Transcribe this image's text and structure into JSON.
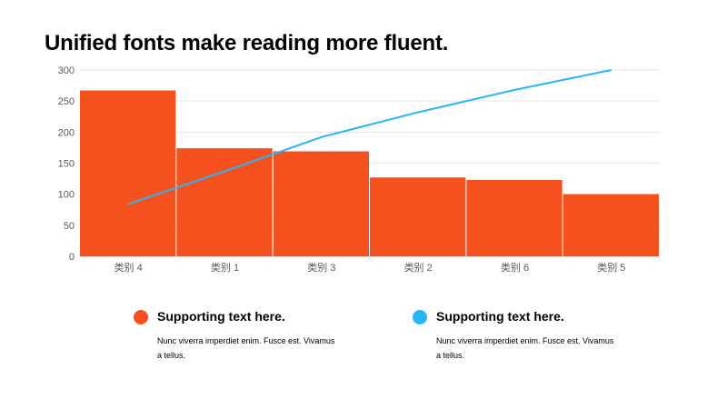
{
  "title": "Unified fonts make reading more fluent.",
  "colors": {
    "bar": "#F4511E",
    "line": "#29B6F6",
    "grid": "#E6E6E6",
    "axis": "#BFBFBF"
  },
  "chart_data": {
    "type": "bar",
    "categories": [
      "类别 4",
      "类别 1",
      "类别 3",
      "类别 2",
      "类别 6",
      "类别 5"
    ],
    "series": [
      {
        "type": "bar",
        "values": [
          267,
          174,
          169,
          127,
          123,
          100
        ]
      },
      {
        "type": "line",
        "values": [
          84,
          137,
          192,
          232,
          268,
          300
        ]
      }
    ],
    "ylim": [
      0,
      300
    ],
    "yticks": [
      0,
      50,
      100,
      150,
      200,
      250,
      300
    ],
    "grid": true
  },
  "legend": [
    {
      "heading": "Supporting text here.",
      "body": "Nunc viverra imperdiet enim. Fusce est. Vivamus a tellus."
    },
    {
      "heading": "Supporting text here.",
      "body": "Nunc viverra imperdiet enim. Fusce est. Vivamus a tellus."
    }
  ]
}
